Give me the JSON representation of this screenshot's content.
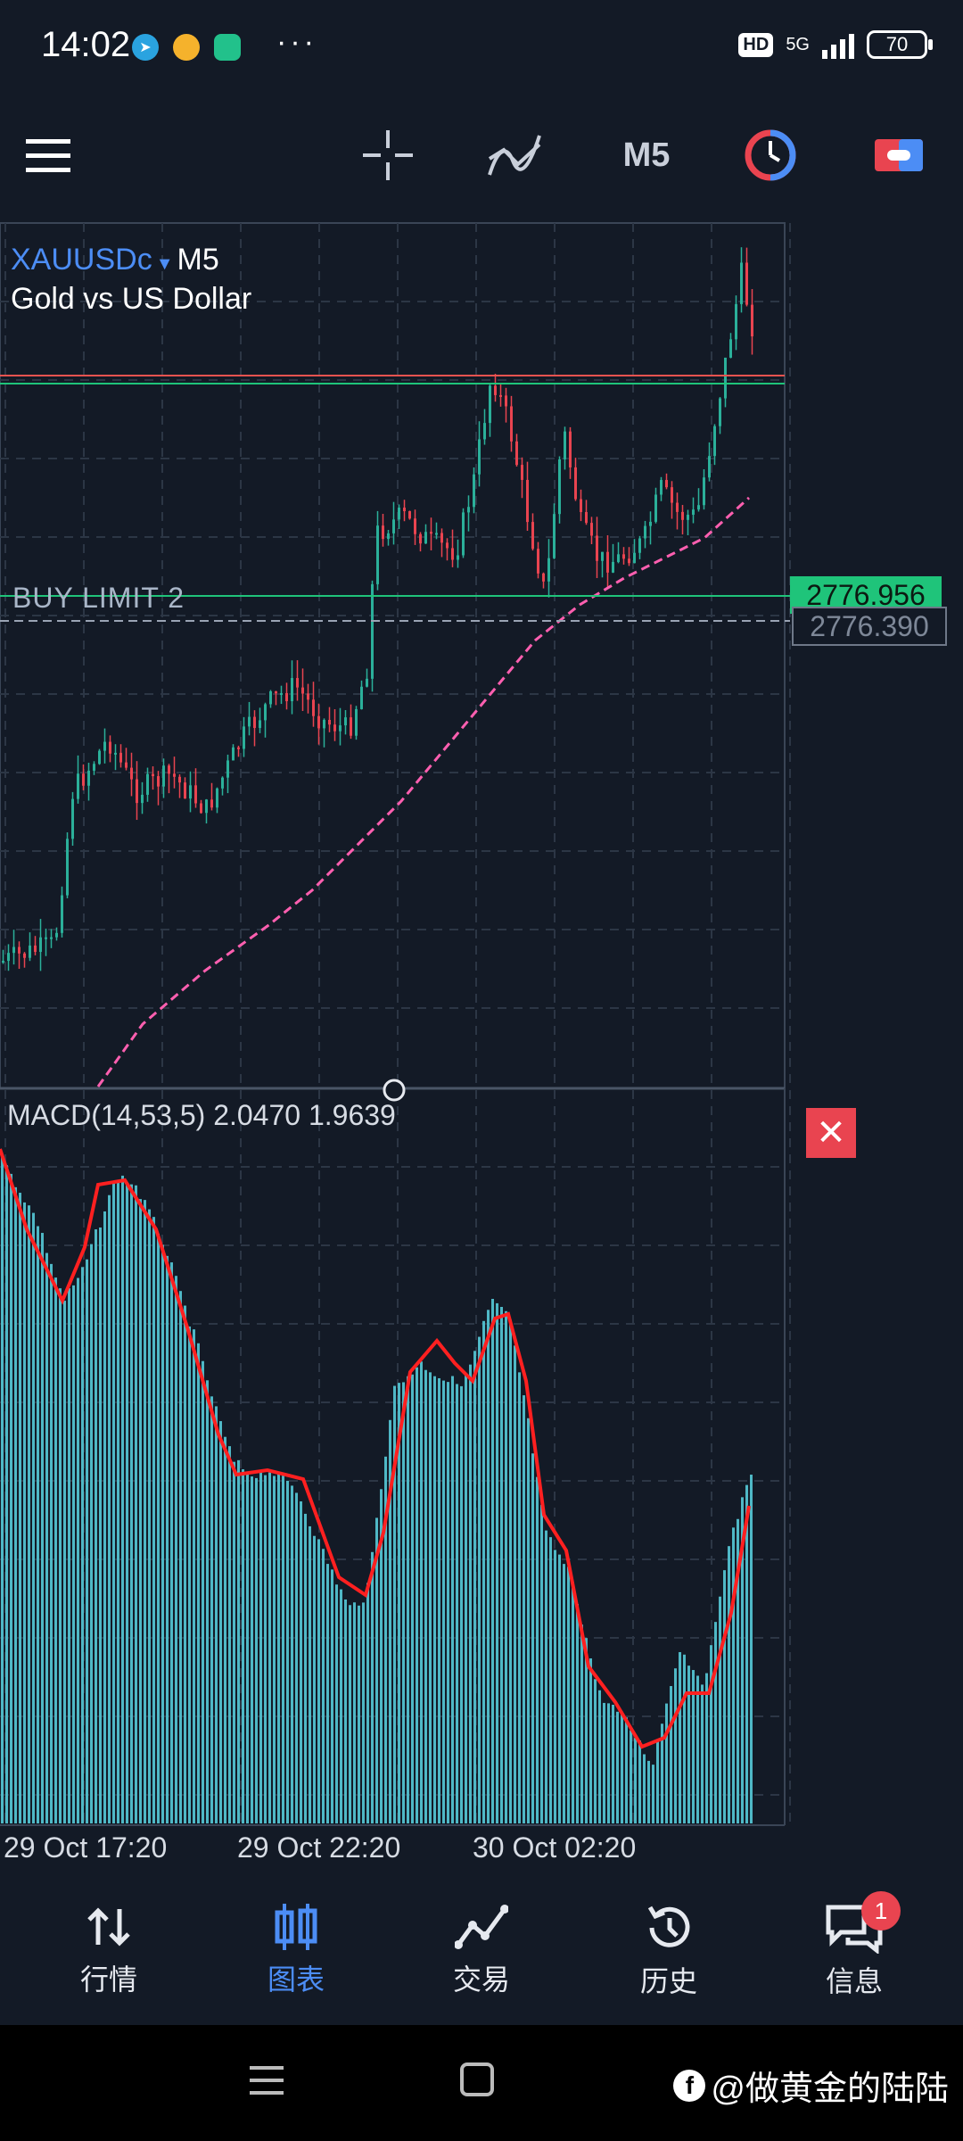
{
  "status_bar": {
    "time": "14:02",
    "hd": "HD",
    "network": "5G",
    "battery": "70",
    "more": "···"
  },
  "toolbar": {
    "timeframe": "M5",
    "icons": [
      "menu-icon",
      "crosshair-icon",
      "indicators-icon",
      "timeframe-label",
      "clock-icon",
      "trade-icon"
    ]
  },
  "chart": {
    "symbol": "XAUUSDc",
    "symbol_timeframe": "M5",
    "description": "Gold vs US Dollar",
    "order_label": "BUY LIMIT 2",
    "price_bid": "2776.956",
    "price_limit": "2776.390",
    "colors": {
      "bull": "#2bb09a",
      "bear": "#e94450",
      "ma": "#ff5fb0",
      "bid_line": "#1fc47a",
      "ask_line": "#ef5350"
    }
  },
  "indicator": {
    "label": "MACD(14,53,5) 2.0470 1.9639",
    "close": "✕",
    "colors": {
      "hist": "#4fb8c6",
      "signal": "#ff2020"
    }
  },
  "x_axis": [
    "29 Oct 17:20",
    "29 Oct 22:20",
    "30 Oct 02:20"
  ],
  "bottom_nav": [
    {
      "label": "行情",
      "icon": "quotes-icon"
    },
    {
      "label": "图表",
      "icon": "chart-icon",
      "active": true
    },
    {
      "label": "交易",
      "icon": "trade-line-icon"
    },
    {
      "label": "历史",
      "icon": "history-icon"
    },
    {
      "label": "信息",
      "icon": "messages-icon",
      "badge": "1"
    }
  ],
  "watermark": "@做黄金的陆陆"
}
